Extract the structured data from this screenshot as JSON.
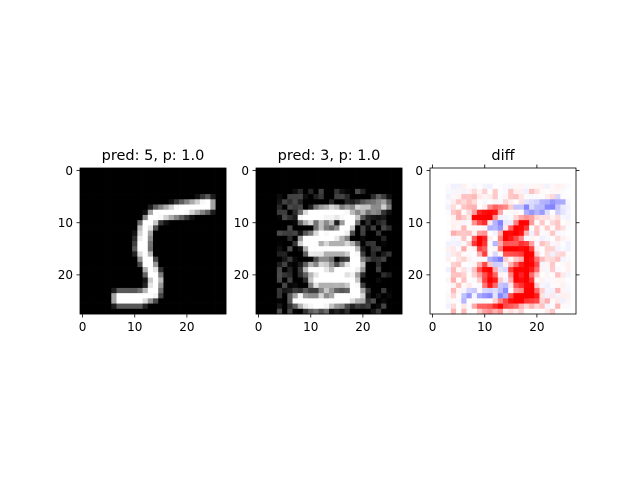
{
  "chart_data": [
    {
      "type": "heatmap",
      "title": "pred: 5, p: 1.0",
      "colormap": "gray",
      "x_ticks": [
        "0",
        "10",
        "20"
      ],
      "y_ticks": [
        "0",
        "10",
        "20"
      ],
      "xlim": [
        0,
        28
      ],
      "ylim": [
        0,
        28
      ],
      "image_size": [
        28,
        28
      ],
      "content": "handwritten digit 5 (original input)"
    },
    {
      "type": "heatmap",
      "title": "pred: 3, p: 1.0",
      "colormap": "gray",
      "x_ticks": [
        "0",
        "10",
        "20"
      ],
      "y_ticks": [
        "0",
        "10",
        "20"
      ],
      "xlim": [
        0,
        28
      ],
      "ylim": [
        0,
        28
      ],
      "image_size": [
        28,
        28
      ],
      "content": "perturbed digit resembling 3 (adversarial input)"
    },
    {
      "type": "heatmap",
      "title": "diff",
      "colormap": "bwr",
      "x_ticks": [
        "0",
        "10",
        "20"
      ],
      "y_ticks": [
        "0",
        "10",
        "20"
      ],
      "xlim": [
        0,
        28
      ],
      "ylim": [
        0,
        28
      ],
      "image_size": [
        28,
        28
      ],
      "content": "difference map, red positive, blue negative, white zero"
    }
  ]
}
